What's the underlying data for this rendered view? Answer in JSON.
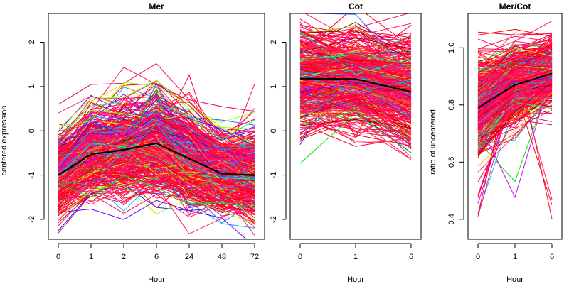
{
  "chart_data": [
    {
      "type": "line",
      "title": "Mer",
      "xlabel": "Hour",
      "ylabel": "centered expression",
      "categories": [
        "0",
        "1",
        "2",
        "6",
        "24",
        "48",
        "72"
      ],
      "yticks": [
        "-2",
        "-1",
        "0",
        "1",
        "2"
      ],
      "ylim": [
        -2.45,
        2.65
      ],
      "mean_line": [
        -1.0,
        -0.53,
        -0.43,
        -0.28,
        -0.63,
        -0.97,
        -1.0
      ],
      "band": {
        "center": [
          -1.0,
          -0.53,
          -0.43,
          -0.28,
          -0.63,
          -0.97,
          -1.0
        ],
        "spread": [
          0.5,
          0.55,
          0.6,
          0.65,
          0.6,
          0.5,
          0.55
        ],
        "outlier_high": [
          0.35,
          0.75,
          1.55,
          1.1,
          1.32,
          0.1,
          1.15
        ],
        "outlier_low": [
          -1.95,
          -1.25,
          -1.2,
          -1.3,
          -1.95,
          -1.8,
          -2.25
        ]
      },
      "grid": false
    },
    {
      "type": "line",
      "title": "Cot",
      "xlabel": "Hour",
      "ylabel": "",
      "categories": [
        "0",
        "1",
        "6"
      ],
      "yticks": [
        "-2",
        "-1",
        "0",
        "1",
        "2"
      ],
      "ylim": [
        -2.45,
        2.65
      ],
      "mean_line": [
        1.18,
        1.17,
        0.88
      ],
      "band": {
        "center": [
          1.18,
          1.17,
          0.88
        ],
        "spread": [
          0.65,
          0.6,
          0.7
        ],
        "outlier_high": [
          2.38,
          2.45,
          2.5
        ],
        "outlier_low": [
          -0.45,
          -0.25,
          -0.45
        ]
      },
      "grid": false
    },
    {
      "type": "line",
      "title": "Mer/Cot",
      "xlabel": "Hour",
      "ylabel": "ratio of uncentered",
      "categories": [
        "0",
        "1",
        "6"
      ],
      "yticks": [
        "0.4",
        "0.6",
        "0.8",
        "1.0"
      ],
      "ylim": [
        0.33,
        1.12
      ],
      "mean_line": [
        0.79,
        0.87,
        0.91
      ],
      "band": {
        "center": [
          0.79,
          0.87,
          0.91
        ],
        "spread": [
          0.1,
          0.08,
          0.07
        ],
        "outlier_high": [
          1.0,
          0.98,
          1.1
        ],
        "outlier_low": [
          0.4,
          0.35,
          0.38
        ]
      },
      "grid": false
    }
  ]
}
